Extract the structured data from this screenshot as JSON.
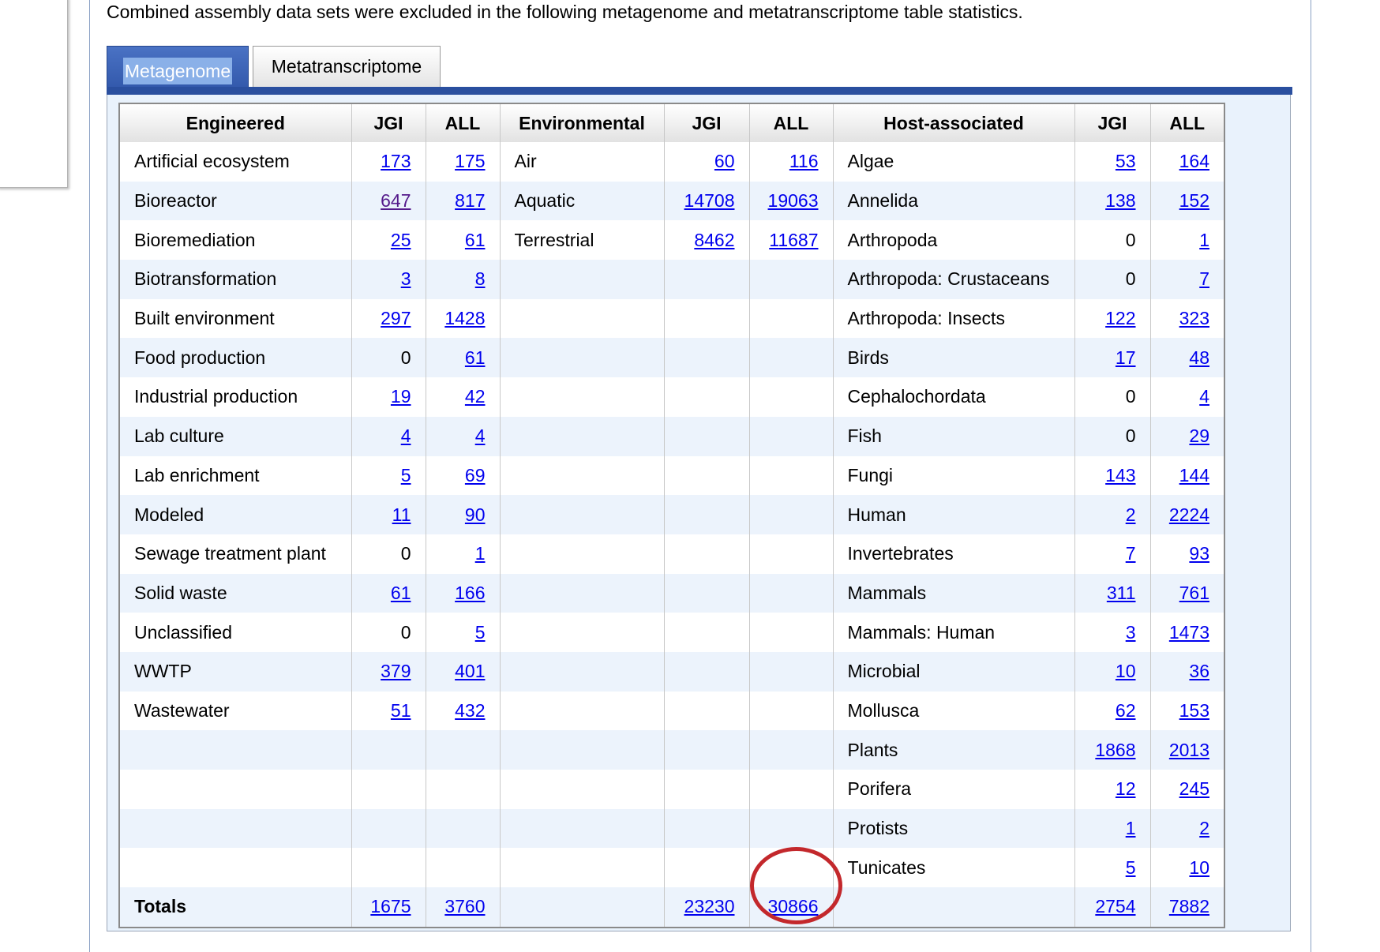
{
  "note": "Combined assembly data sets were excluded in the following metagenome and metatranscriptome table statistics.",
  "tabs": [
    {
      "label": "Metagenome",
      "active": true
    },
    {
      "label": "Metatranscriptome",
      "active": false
    }
  ],
  "headers": [
    "Engineered",
    "JGI",
    "ALL",
    "Environmental",
    "JGI",
    "ALL",
    "Host-associated",
    "JGI",
    "ALL"
  ],
  "engineered": [
    {
      "name": "Artificial ecosystem",
      "jgi": "173",
      "all": "175"
    },
    {
      "name": "Bioreactor",
      "jgi": "647",
      "all": "817"
    },
    {
      "name": "Bioremediation",
      "jgi": "25",
      "all": "61"
    },
    {
      "name": "Biotransformation",
      "jgi": "3",
      "all": "8"
    },
    {
      "name": "Built environment",
      "jgi": "297",
      "all": "1428"
    },
    {
      "name": "Food production",
      "jgi": "0",
      "all": "61"
    },
    {
      "name": "Industrial production",
      "jgi": "19",
      "all": "42"
    },
    {
      "name": "Lab culture",
      "jgi": "4",
      "all": "4"
    },
    {
      "name": "Lab enrichment",
      "jgi": "5",
      "all": "69"
    },
    {
      "name": "Modeled",
      "jgi": "11",
      "all": "90"
    },
    {
      "name": "Sewage treatment plant",
      "jgi": "0",
      "all": "1"
    },
    {
      "name": "Solid waste",
      "jgi": "61",
      "all": "166"
    },
    {
      "name": "Unclassified",
      "jgi": "0",
      "all": "5"
    },
    {
      "name": "WWTP",
      "jgi": "379",
      "all": "401"
    },
    {
      "name": "Wastewater",
      "jgi": "51",
      "all": "432"
    }
  ],
  "environmental": [
    {
      "name": "Air",
      "jgi": "60",
      "all": "116"
    },
    {
      "name": "Aquatic",
      "jgi": "14708",
      "all": "19063"
    },
    {
      "name": "Terrestrial",
      "jgi": "8462",
      "all": "11687"
    }
  ],
  "host": [
    {
      "name": "Algae",
      "jgi": "53",
      "all": "164"
    },
    {
      "name": "Annelida",
      "jgi": "138",
      "all": "152"
    },
    {
      "name": "Arthropoda",
      "jgi": "0",
      "all": "1"
    },
    {
      "name": "Arthropoda: Crustaceans",
      "jgi": "0",
      "all": "7"
    },
    {
      "name": "Arthropoda: Insects",
      "jgi": "122",
      "all": "323"
    },
    {
      "name": "Birds",
      "jgi": "17",
      "all": "48"
    },
    {
      "name": "Cephalochordata",
      "jgi": "0",
      "all": "4"
    },
    {
      "name": "Fish",
      "jgi": "0",
      "all": "29"
    },
    {
      "name": "Fungi",
      "jgi": "143",
      "all": "144"
    },
    {
      "name": "Human",
      "jgi": "2",
      "all": "2224"
    },
    {
      "name": "Invertebrates",
      "jgi": "7",
      "all": "93"
    },
    {
      "name": "Mammals",
      "jgi": "311",
      "all": "761"
    },
    {
      "name": "Mammals: Human",
      "jgi": "3",
      "all": "1473"
    },
    {
      "name": "Microbial",
      "jgi": "10",
      "all": "36"
    },
    {
      "name": "Mollusca",
      "jgi": "62",
      "all": "153"
    },
    {
      "name": "Plants",
      "jgi": "1868",
      "all": "2013"
    },
    {
      "name": "Porifera",
      "jgi": "12",
      "all": "245"
    },
    {
      "name": "Protists",
      "jgi": "1",
      "all": "2"
    },
    {
      "name": "Tunicates",
      "jgi": "5",
      "all": "10"
    }
  ],
  "totals": {
    "label": "Totals",
    "engineered": {
      "jgi": "1675",
      "all": "3760"
    },
    "environmental": {
      "jgi": "23230",
      "all": "30866"
    },
    "host": {
      "jgi": "2754",
      "all": "7882"
    }
  },
  "annotation": {
    "highlight_color": "#c3282c",
    "highlighted_value": "30866"
  }
}
